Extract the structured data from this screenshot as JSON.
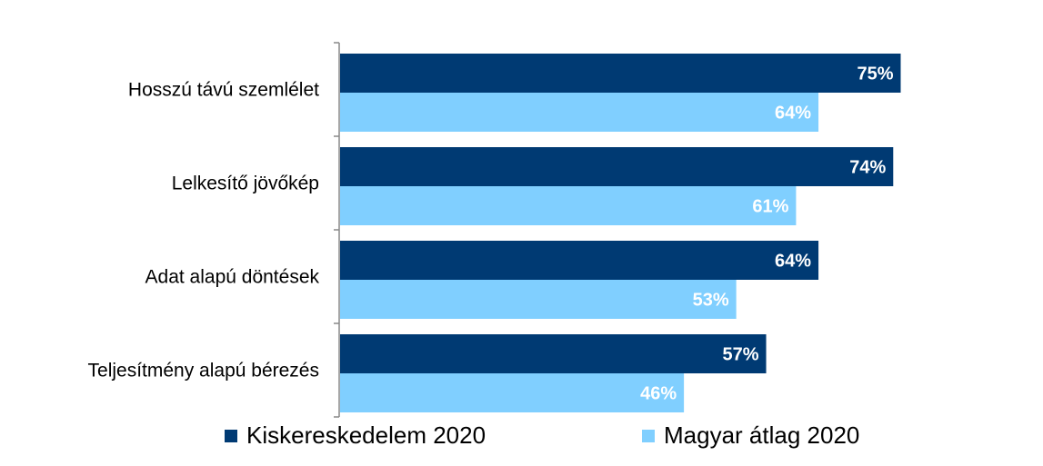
{
  "chart_data": {
    "type": "bar",
    "orientation": "horizontal",
    "categories": [
      "Hosszú távú szemlélet",
      "Lelkesítő jövőkép",
      "Adat alapú döntések",
      "Teljesítmény alapú bérezés"
    ],
    "series": [
      {
        "name": "Kiskereskedelem 2020",
        "values": [
          75,
          74,
          64,
          57
        ],
        "labels": [
          "75%",
          "74%",
          "64%",
          "57%"
        ],
        "color": "#003A73"
      },
      {
        "name": "Magyar átlag 2020",
        "values": [
          64,
          61,
          53,
          46
        ],
        "labels": [
          "64%",
          "61%",
          "53%",
          "46%"
        ],
        "color": "#80CFFF"
      }
    ],
    "xlim": [
      0,
      100
    ],
    "grid": false,
    "legend_position": "bottom"
  }
}
